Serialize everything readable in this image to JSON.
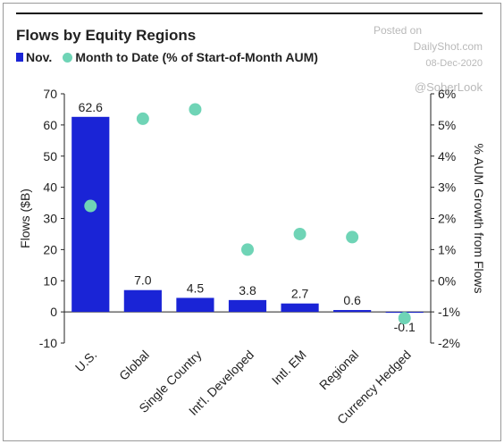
{
  "source": {
    "posted_on": "Posted on",
    "site": "DailyShot.com",
    "date": "08-Dec-2020",
    "handle": "@SoberLook"
  },
  "colors": {
    "bars": "#1a24d6",
    "dots": "#6fd4b6"
  },
  "chart_data": {
    "type": "bar",
    "title": "Flows by Equity Regions",
    "categories": [
      "U.S.",
      "Global",
      "Single Country",
      "Int'l. Developed",
      "Intl. EM",
      "Regional",
      "Currency Hedged"
    ],
    "series": [
      {
        "name": "Nov.",
        "type": "bar",
        "axis": "left",
        "values": [
          62.6,
          7.0,
          4.5,
          3.8,
          2.7,
          0.6,
          -0.1
        ],
        "labels": [
          "62.6",
          "7.0",
          "4.5",
          "3.8",
          "2.7",
          "0.6",
          "-0.1"
        ]
      },
      {
        "name": "Month to Date (% of Start-of-Month AUM)",
        "type": "scatter",
        "axis": "right",
        "values": [
          2.4,
          5.2,
          5.5,
          1.0,
          1.5,
          1.4,
          -1.2
        ]
      }
    ],
    "ylabel": "Flows ($B)",
    "y2label": "% AUM Growth from Flows",
    "ylim": [
      -10,
      70
    ],
    "yticks": [
      -10,
      0,
      10,
      20,
      30,
      40,
      50,
      60,
      70
    ],
    "y2lim": [
      -2,
      6
    ],
    "y2ticks": [
      "-2%",
      "-1%",
      "0%",
      "1%",
      "2%",
      "3%",
      "4%",
      "5%",
      "6%"
    ]
  }
}
